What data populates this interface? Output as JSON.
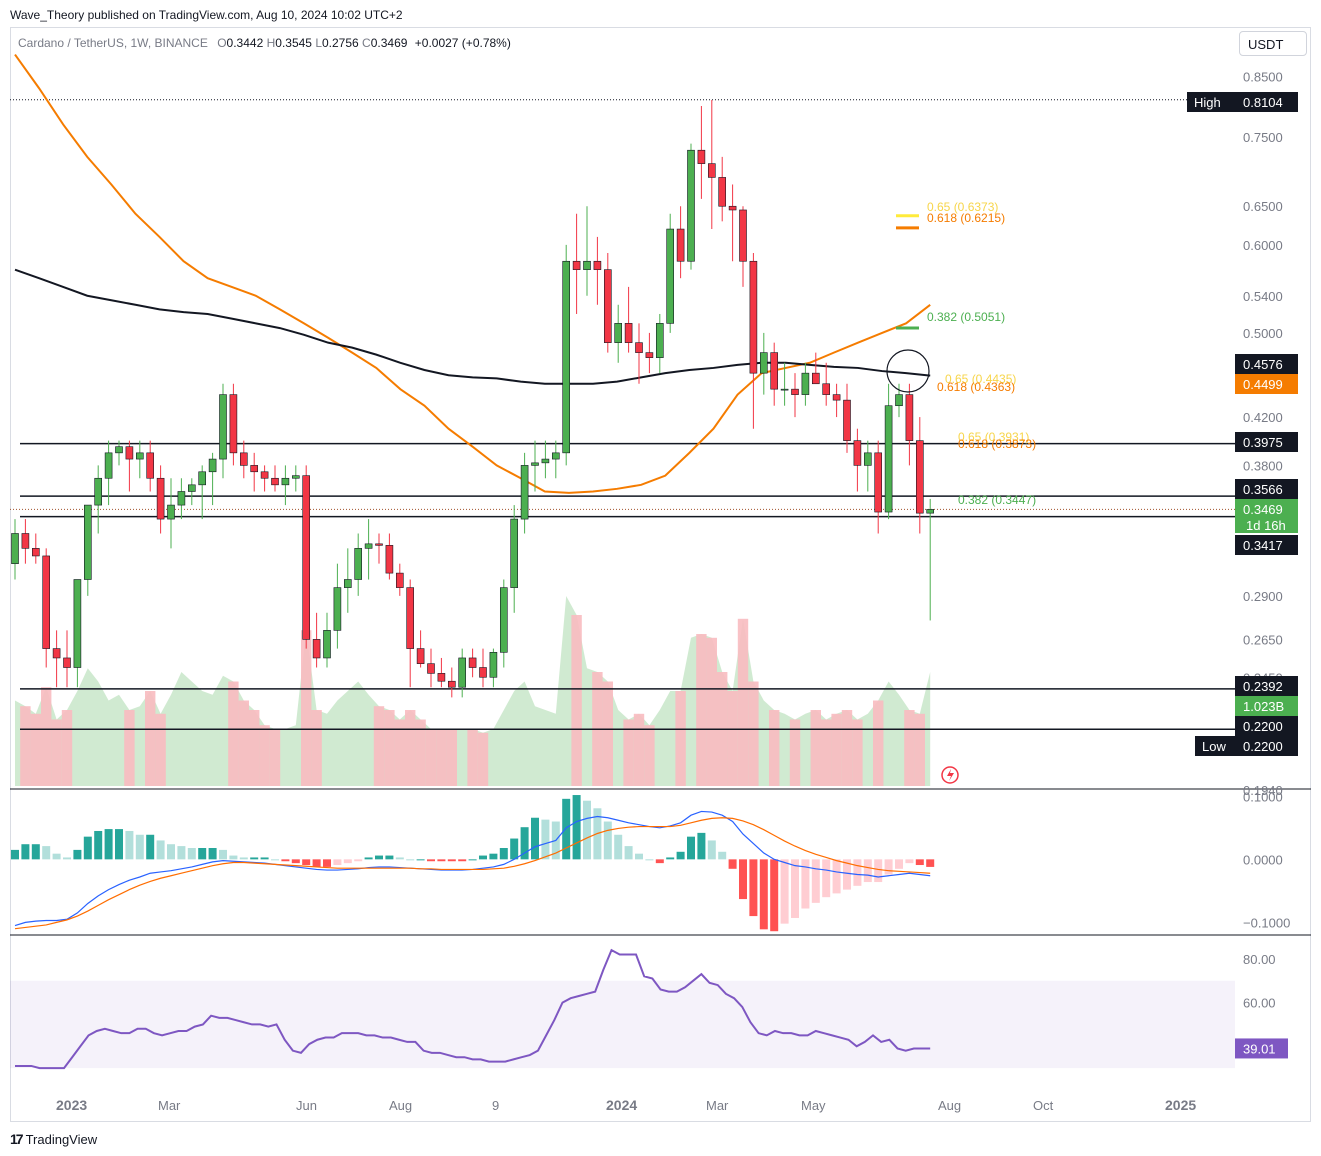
{
  "header": {
    "publisher": "Wave_Theory published on TradingView.com, Aug 10, 2024 10:02 UTC+2",
    "symbol": "Cardano / TetherUS, 1W, BINANCE",
    "open_label": "O",
    "open": "0.3442",
    "high_label": "H",
    "high": "0.3545",
    "low_label": "L",
    "low": "0.2756",
    "close_label": "C",
    "close": "0.3469",
    "change": "+0.0027 (+0.78%)",
    "currency_button": "USDT"
  },
  "footer": {
    "brand": "TradingView",
    "logo_glyph": "17"
  },
  "colors": {
    "up": "#4caf50",
    "down": "#f23645",
    "ma_orange": "#f57c00",
    "ma_black": "#131722",
    "macd_line": "#2962ff",
    "signal_line": "#ff6d00",
    "rsi": "#7e57c2",
    "vol_up": "#c8e6c9",
    "vol_down": "#f8bbc0",
    "fib_yellow": "#ffeb3b",
    "fib_orange": "#f57c00",
    "fib_green": "#4caf50"
  },
  "chart_data": [
    {
      "id": "price",
      "type": "candlestick",
      "scale": "log",
      "title": "Cardano / TetherUS, 1W, BINANCE",
      "ylim": [
        0.19,
        0.88
      ],
      "y_ticks": [
        "0.8500",
        "0.7500",
        "0.6500",
        "0.6000",
        "0.5400",
        "0.5000",
        "0.4200",
        "0.3800",
        "0.2900",
        "0.2650",
        "0.2450",
        "0.1940"
      ],
      "x_ticks": [
        "2023",
        "Mar",
        "Jun",
        "Aug",
        "9",
        "2024",
        "Mar",
        "May",
        "Aug",
        "Oct",
        "2025"
      ],
      "candles": [
        [
          0.31,
          0.34,
          0.3,
          0.33
        ],
        [
          0.33,
          0.34,
          0.31,
          0.32
        ],
        [
          0.32,
          0.33,
          0.31,
          0.315
        ],
        [
          0.315,
          0.32,
          0.25,
          0.26
        ],
        [
          0.26,
          0.27,
          0.24,
          0.255
        ],
        [
          0.255,
          0.27,
          0.24,
          0.25
        ],
        [
          0.25,
          0.3,
          0.24,
          0.3
        ],
        [
          0.3,
          0.35,
          0.29,
          0.35
        ],
        [
          0.35,
          0.38,
          0.33,
          0.37
        ],
        [
          0.37,
          0.4,
          0.35,
          0.39
        ],
        [
          0.39,
          0.4,
          0.38,
          0.395
        ],
        [
          0.395,
          0.4,
          0.36,
          0.385
        ],
        [
          0.385,
          0.4,
          0.37,
          0.39
        ],
        [
          0.39,
          0.4,
          0.36,
          0.37
        ],
        [
          0.37,
          0.38,
          0.33,
          0.34
        ],
        [
          0.34,
          0.37,
          0.32,
          0.35
        ],
        [
          0.35,
          0.37,
          0.34,
          0.36
        ],
        [
          0.36,
          0.37,
          0.35,
          0.365
        ],
        [
          0.365,
          0.38,
          0.34,
          0.375
        ],
        [
          0.375,
          0.39,
          0.35,
          0.385
        ],
        [
          0.385,
          0.45,
          0.37,
          0.44
        ],
        [
          0.44,
          0.45,
          0.38,
          0.39
        ],
        [
          0.39,
          0.4,
          0.37,
          0.38
        ],
        [
          0.38,
          0.39,
          0.36,
          0.375
        ],
        [
          0.375,
          0.38,
          0.36,
          0.37
        ],
        [
          0.37,
          0.38,
          0.36,
          0.365
        ],
        [
          0.365,
          0.38,
          0.35,
          0.37
        ],
        [
          0.37,
          0.38,
          0.36,
          0.372
        ],
        [
          0.372,
          0.38,
          0.26,
          0.265
        ],
        [
          0.265,
          0.28,
          0.25,
          0.255
        ],
        [
          0.255,
          0.28,
          0.25,
          0.27
        ],
        [
          0.27,
          0.31,
          0.26,
          0.295
        ],
        [
          0.295,
          0.32,
          0.28,
          0.3
        ],
        [
          0.3,
          0.33,
          0.29,
          0.32
        ],
        [
          0.32,
          0.34,
          0.3,
          0.323
        ],
        [
          0.323,
          0.33,
          0.31,
          0.322
        ],
        [
          0.322,
          0.33,
          0.3,
          0.304
        ],
        [
          0.304,
          0.31,
          0.29,
          0.295
        ],
        [
          0.295,
          0.3,
          0.24,
          0.26
        ],
        [
          0.26,
          0.27,
          0.25,
          0.252
        ],
        [
          0.252,
          0.26,
          0.24,
          0.247
        ],
        [
          0.247,
          0.255,
          0.24,
          0.243
        ],
        [
          0.243,
          0.25,
          0.235,
          0.24
        ],
        [
          0.24,
          0.26,
          0.235,
          0.255
        ],
        [
          0.255,
          0.26,
          0.245,
          0.25
        ],
        [
          0.25,
          0.26,
          0.24,
          0.245
        ],
        [
          0.245,
          0.26,
          0.24,
          0.258
        ],
        [
          0.258,
          0.3,
          0.25,
          0.295
        ],
        [
          0.295,
          0.35,
          0.28,
          0.34
        ],
        [
          0.34,
          0.39,
          0.33,
          0.38
        ],
        [
          0.38,
          0.4,
          0.36,
          0.382
        ],
        [
          0.382,
          0.4,
          0.37,
          0.385
        ],
        [
          0.385,
          0.4,
          0.37,
          0.39
        ],
        [
          0.39,
          0.6,
          0.38,
          0.58
        ],
        [
          0.58,
          0.64,
          0.52,
          0.57
        ],
        [
          0.57,
          0.65,
          0.54,
          0.58
        ],
        [
          0.58,
          0.61,
          0.53,
          0.57
        ],
        [
          0.57,
          0.59,
          0.48,
          0.49
        ],
        [
          0.49,
          0.53,
          0.47,
          0.51
        ],
        [
          0.51,
          0.55,
          0.48,
          0.49
        ],
        [
          0.49,
          0.51,
          0.45,
          0.48
        ],
        [
          0.48,
          0.5,
          0.46,
          0.475
        ],
        [
          0.475,
          0.52,
          0.46,
          0.51
        ],
        [
          0.51,
          0.64,
          0.5,
          0.62
        ],
        [
          0.62,
          0.65,
          0.56,
          0.58
        ],
        [
          0.58,
          0.74,
          0.57,
          0.73
        ],
        [
          0.73,
          0.8,
          0.66,
          0.71
        ],
        [
          0.71,
          0.81,
          0.62,
          0.69
        ],
        [
          0.69,
          0.72,
          0.63,
          0.65
        ],
        [
          0.65,
          0.68,
          0.58,
          0.645
        ],
        [
          0.645,
          0.65,
          0.55,
          0.58
        ],
        [
          0.58,
          0.59,
          0.41,
          0.46
        ],
        [
          0.46,
          0.5,
          0.44,
          0.48
        ],
        [
          0.48,
          0.49,
          0.43,
          0.445
        ],
        [
          0.445,
          0.47,
          0.43,
          0.445
        ],
        [
          0.445,
          0.46,
          0.42,
          0.44
        ],
        [
          0.44,
          0.47,
          0.43,
          0.46
        ],
        [
          0.46,
          0.48,
          0.45,
          0.45
        ],
        [
          0.45,
          0.47,
          0.43,
          0.44
        ],
        [
          0.44,
          0.45,
          0.42,
          0.435
        ],
        [
          0.435,
          0.45,
          0.39,
          0.4
        ],
        [
          0.4,
          0.41,
          0.36,
          0.38
        ],
        [
          0.38,
          0.4,
          0.36,
          0.39
        ],
        [
          0.39,
          0.4,
          0.33,
          0.345
        ],
        [
          0.345,
          0.45,
          0.34,
          0.43
        ],
        [
          0.43,
          0.45,
          0.42,
          0.44
        ],
        [
          0.44,
          0.45,
          0.38,
          0.4
        ],
        [
          0.4,
          0.42,
          0.33,
          0.3442
        ],
        [
          0.3442,
          0.3545,
          0.2756,
          0.3469
        ]
      ],
      "moving_averages": [
        {
          "name": "",
          "color": "#f57c00",
          "values": [
            0.89,
            0.83,
            0.77,
            0.72,
            0.68,
            0.64,
            0.61,
            0.58,
            0.56,
            0.55,
            0.54,
            0.525,
            0.51,
            0.495,
            0.48,
            0.465,
            0.445,
            0.43,
            0.41,
            0.395,
            0.38,
            0.37,
            0.36,
            0.359,
            0.36,
            0.362,
            0.365,
            0.372,
            0.39,
            0.41,
            0.44,
            0.46,
            0.465,
            0.47,
            0.48,
            0.49,
            0.5,
            0.51,
            0.53
          ]
        },
        {
          "name": "",
          "color": "#131722",
          "values": [
            0.57,
            0.56,
            0.55,
            0.54,
            0.535,
            0.53,
            0.525,
            0.522,
            0.52,
            0.515,
            0.51,
            0.505,
            0.498,
            0.49,
            0.485,
            0.478,
            0.47,
            0.463,
            0.458,
            0.456,
            0.455,
            0.452,
            0.45,
            0.45,
            0.45,
            0.452,
            0.456,
            0.46,
            0.463,
            0.465,
            0.468,
            0.47,
            0.47,
            0.468,
            0.466,
            0.465,
            0.462,
            0.46,
            0.4576
          ]
        }
      ],
      "horizontal_levels": [
        {
          "value": "0.3975"
        },
        {
          "value": "0.3566"
        },
        {
          "value": "0.3417"
        },
        {
          "value": "0.2392"
        },
        {
          "value": "0.2200"
        }
      ],
      "fib_labels": [
        {
          "text": "0.65 (0.6373)",
          "color": "#f7d54a"
        },
        {
          "text": "0.618 (0.6215)",
          "color": "#f57c00"
        },
        {
          "text": "0.382 (0.5051)",
          "color": "#4caf50"
        },
        {
          "text": "0.65 (0.4435)",
          "color": "#f7d54a"
        },
        {
          "text": "0.618 (0.4363)",
          "color": "#f57c00"
        },
        {
          "text": "0.65 (0.3931)",
          "color": "#f7d54a"
        },
        {
          "text": "0.618 (0.3873)",
          "color": "#f57c00"
        },
        {
          "text": "0.382 (0.3447)",
          "color": "#4caf50"
        }
      ],
      "price_labels": [
        {
          "text": "High",
          "value": "0.8104",
          "style": "dark"
        },
        {
          "text": "",
          "value": "0.4576",
          "style": "dark"
        },
        {
          "text": "",
          "value": "0.4499",
          "style": "orange"
        },
        {
          "text": "",
          "value": "0.3975",
          "style": "dark"
        },
        {
          "text": "",
          "value": "0.3566",
          "style": "dark"
        },
        {
          "text": "",
          "value": "0.3469",
          "style": "green",
          "sub": "1d 16h"
        },
        {
          "text": "",
          "value": "0.3417",
          "style": "dark"
        },
        {
          "text": "",
          "value": "0.2392",
          "style": "dark"
        },
        {
          "text": "",
          "value": "1.023B",
          "style": "green"
        },
        {
          "text": "",
          "value": "0.2200",
          "style": "dark"
        },
        {
          "text": "Low",
          "value": "0.2200",
          "style": "dark"
        }
      ],
      "volume": [
        0.45,
        0.42,
        0.38,
        0.52,
        0.35,
        0.4,
        0.5,
        0.62,
        0.55,
        0.45,
        0.48,
        0.4,
        0.42,
        0.5,
        0.38,
        0.48,
        0.6,
        0.55,
        0.5,
        0.48,
        0.58,
        0.55,
        0.45,
        0.4,
        0.32,
        0.3,
        0.3,
        0.32,
        0.82,
        0.4,
        0.38,
        0.45,
        0.5,
        0.55,
        0.48,
        0.42,
        0.4,
        0.35,
        0.4,
        0.35,
        0.3,
        0.3,
        0.3,
        0.3,
        0.3,
        0.28,
        0.3,
        0.4,
        0.5,
        0.55,
        0.42,
        0.4,
        0.38,
        1.0,
        0.9,
        0.62,
        0.6,
        0.55,
        0.4,
        0.35,
        0.38,
        0.32,
        0.4,
        0.5,
        0.5,
        0.78,
        0.8,
        0.78,
        0.6,
        0.5,
        0.88,
        0.55,
        0.45,
        0.4,
        0.38,
        0.35,
        0.38,
        0.4,
        0.35,
        0.38,
        0.4,
        0.35,
        0.38,
        0.45,
        0.55,
        0.48,
        0.4,
        0.38,
        0.6
      ]
    },
    {
      "id": "macd",
      "type": "macd",
      "y_ticks": [
        "0.1000",
        "0.0000",
        "−0.1000"
      ],
      "ylim": [
        -0.12,
        0.11
      ],
      "macd": [
        -0.105,
        -0.1,
        -0.098,
        -0.097,
        -0.097,
        -0.095,
        -0.085,
        -0.07,
        -0.058,
        -0.048,
        -0.04,
        -0.033,
        -0.028,
        -0.022,
        -0.02,
        -0.018,
        -0.015,
        -0.012,
        -0.008,
        -0.004,
        -0.002,
        -0.003,
        -0.004,
        -0.005,
        -0.006,
        -0.008,
        -0.01,
        -0.012,
        -0.014,
        -0.016,
        -0.017,
        -0.017,
        -0.016,
        -0.015,
        -0.013,
        -0.012,
        -0.012,
        -0.013,
        -0.014,
        -0.015,
        -0.016,
        -0.017,
        -0.017,
        -0.017,
        -0.016,
        -0.014,
        -0.012,
        -0.008,
        0.0,
        0.01,
        0.02,
        0.025,
        0.03,
        0.05,
        0.06,
        0.065,
        0.068,
        0.066,
        0.062,
        0.058,
        0.055,
        0.052,
        0.05,
        0.053,
        0.058,
        0.07,
        0.076,
        0.075,
        0.07,
        0.06,
        0.04,
        0.025,
        0.01,
        0.0,
        -0.005,
        -0.01,
        -0.012,
        -0.015,
        -0.017,
        -0.02,
        -0.022,
        -0.024,
        -0.025,
        -0.028,
        -0.026,
        -0.024,
        -0.022,
        -0.024,
        -0.026
      ],
      "signal": [
        -0.11,
        -0.108,
        -0.106,
        -0.104,
        -0.1,
        -0.096,
        -0.09,
        -0.082,
        -0.073,
        -0.064,
        -0.056,
        -0.048,
        -0.041,
        -0.035,
        -0.03,
        -0.026,
        -0.022,
        -0.018,
        -0.014,
        -0.01,
        -0.007,
        -0.005,
        -0.005,
        -0.006,
        -0.007,
        -0.008,
        -0.009,
        -0.01,
        -0.011,
        -0.012,
        -0.013,
        -0.014,
        -0.014,
        -0.014,
        -0.014,
        -0.014,
        -0.014,
        -0.014,
        -0.014,
        -0.015,
        -0.015,
        -0.016,
        -0.016,
        -0.016,
        -0.016,
        -0.016,
        -0.015,
        -0.014,
        -0.011,
        -0.007,
        -0.002,
        0.004,
        0.01,
        0.018,
        0.026,
        0.034,
        0.041,
        0.046,
        0.049,
        0.051,
        0.052,
        0.052,
        0.052,
        0.052,
        0.054,
        0.058,
        0.062,
        0.065,
        0.066,
        0.065,
        0.061,
        0.055,
        0.047,
        0.038,
        0.029,
        0.021,
        0.014,
        0.008,
        0.003,
        -0.002,
        -0.006,
        -0.01,
        -0.013,
        -0.016,
        -0.018,
        -0.019,
        -0.02,
        -0.021,
        -0.022
      ]
    },
    {
      "id": "rsi",
      "type": "line",
      "y_ticks": [
        "80.00",
        "60.00"
      ],
      "ylim": [
        20,
        90
      ],
      "band": [
        30,
        70
      ],
      "current_value": "39.01",
      "values": [
        31,
        31,
        31,
        30,
        30,
        30,
        30,
        35,
        40,
        45,
        47,
        48,
        47,
        46,
        46,
        48,
        48,
        46,
        45,
        46,
        47,
        47,
        49,
        50,
        54,
        53,
        53,
        52,
        51,
        50,
        50,
        49,
        50,
        43,
        38,
        37,
        41,
        43,
        44,
        44,
        46,
        46,
        46,
        45,
        45,
        44,
        44,
        43,
        42,
        42,
        38,
        37,
        37,
        36,
        35,
        35,
        34,
        34,
        33,
        33,
        33,
        34,
        35,
        36,
        38,
        45,
        52,
        60,
        62,
        63,
        64,
        65,
        75,
        84,
        82,
        82,
        82,
        72,
        71,
        66,
        65,
        65,
        67,
        70,
        73,
        69,
        68,
        64,
        62,
        58,
        51,
        46,
        45,
        47,
        46,
        46,
        45,
        45,
        47,
        46,
        45,
        44,
        43,
        40,
        42,
        45,
        42,
        43,
        39,
        38,
        39,
        39,
        39.01
      ]
    }
  ]
}
